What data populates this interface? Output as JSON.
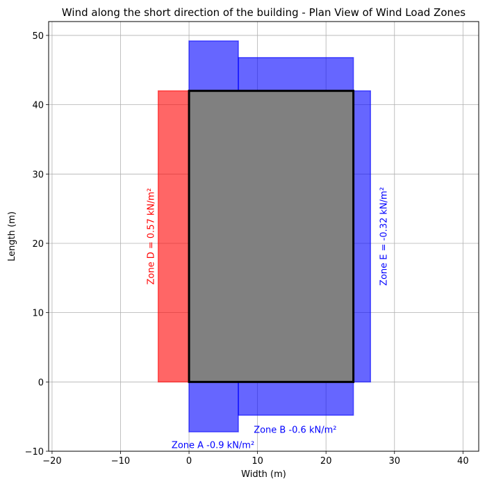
{
  "chart_data": {
    "type": "plan-view",
    "title": "Wind along the short direction of the building - Plan View of Wind Load Zones",
    "xlabel": "Width (m)",
    "ylabel": "Length (m)",
    "xlim": [
      -20.5,
      42.3
    ],
    "ylim": [
      -10,
      52
    ],
    "xticks": [
      -20,
      -10,
      0,
      10,
      20,
      30,
      40
    ],
    "yticks": [
      -10,
      0,
      10,
      20,
      30,
      40,
      50
    ],
    "xtick_labels": [
      "−20",
      "−10",
      "0",
      "10",
      "20",
      "30",
      "40"
    ],
    "ytick_labels": [
      "−10",
      "0",
      "10",
      "20",
      "30",
      "40",
      "50"
    ],
    "grid": true,
    "building": {
      "x0": 0,
      "y0": 0,
      "x1": 24,
      "y1": 42,
      "color": "#808080",
      "edge": "#000000"
    },
    "zones": [
      {
        "name": "Zone D",
        "x0": -4.5,
        "y0": 0,
        "x1": 0,
        "y1": 42,
        "color": "#ff0000"
      },
      {
        "name": "Zone E",
        "x0": 24,
        "y0": 0,
        "x1": 26.5,
        "y1": 42,
        "color": "#0000ff"
      },
      {
        "name": "Zone A (bottom)",
        "x0": 0,
        "y0": -7.2,
        "x1": 7.2,
        "y1": 0,
        "color": "#0000ff"
      },
      {
        "name": "Zone B (bottom)",
        "x0": 7.2,
        "y0": -4.8,
        "x1": 24,
        "y1": 0,
        "color": "#0000ff"
      },
      {
        "name": "Zone A (top)",
        "x0": 0,
        "y0": 42,
        "x1": 7.2,
        "y1": 49.2,
        "color": "#0000ff"
      },
      {
        "name": "Zone B (top)",
        "x0": 7.2,
        "y0": 42,
        "x1": 24,
        "y1": 46.8,
        "color": "#0000ff"
      }
    ],
    "annotations": [
      {
        "text": "Zone D = 0.57 kN/m²",
        "x": -5.5,
        "y": 21,
        "rotate": true,
        "color": "#ff0000"
      },
      {
        "text": "Zone E = -0.32 kN/m²",
        "x": 28.5,
        "y": 21,
        "rotate": true,
        "color": "#0000ff"
      },
      {
        "text": "Zone B -0.6 kN/m²",
        "x": 15.5,
        "y": -7,
        "rotate": false,
        "color": "#0000ff"
      },
      {
        "text": "Zone A -0.9 kN/m²",
        "x": 3.5,
        "y": -9.2,
        "rotate": false,
        "color": "#0000ff"
      }
    ]
  }
}
